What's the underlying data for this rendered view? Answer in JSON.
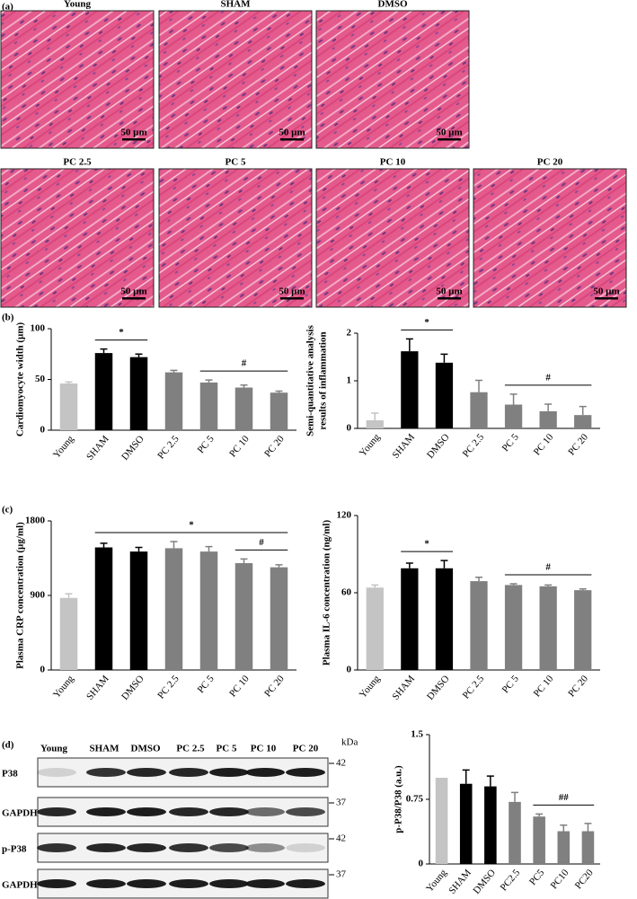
{
  "figure": {
    "panel_labels": [
      "(a)",
      "(b)",
      "(c)",
      "(d)"
    ],
    "histology": {
      "titles": [
        "Young",
        "SHAM",
        "DMSO",
        "PC 2.5",
        "PC 5",
        "PC 10",
        "PC 20"
      ],
      "scale_bar": "50 µm"
    },
    "blot": {
      "lanes": [
        "Young",
        "SHAM",
        "DMSO",
        "PC 2.5",
        "PC 5",
        "PC 10",
        "PC 20"
      ],
      "unit": "kDa",
      "rows": [
        {
          "label": "P38",
          "kda": 42
        },
        {
          "label": "GAPDH",
          "kda": 37
        },
        {
          "label": "p-P38",
          "kda": 42
        },
        {
          "label": "GAPDH",
          "kda": 37
        }
      ]
    }
  },
  "chart_data": [
    {
      "type": "bar",
      "ylabel": [
        "Cardiomyocyte width (µm)"
      ],
      "categories": [
        "Young",
        "SHAM",
        "DMSO",
        "PC 2.5",
        "PC 5",
        "PC 10",
        "PC 20"
      ],
      "values": [
        46,
        76,
        72,
        57,
        47,
        42,
        37
      ],
      "errors": [
        1.5,
        4,
        3,
        2,
        2.5,
        2.5,
        1.5
      ],
      "colors": [
        "#c4c4c4",
        "#000000",
        "#000000",
        "#808080",
        "#808080",
        "#808080",
        "#808080"
      ],
      "ylim": [
        0,
        100
      ],
      "yticks": [
        0,
        50,
        100
      ],
      "annotations": [
        {
          "text": "*",
          "from": "SHAM",
          "to": "DMSO"
        },
        {
          "text": "#",
          "from": "PC 5",
          "to": "PC 20"
        }
      ]
    },
    {
      "type": "bar",
      "ylabel": [
        "Semi-quantitative analysis",
        "results of inflammation"
      ],
      "categories": [
        "Young",
        "SHAM",
        "DMSO",
        "PC 2.5",
        "PC 5",
        "PC 10",
        "PC 20"
      ],
      "values": [
        0.17,
        1.62,
        1.38,
        0.76,
        0.5,
        0.36,
        0.28
      ],
      "errors": [
        0.15,
        0.26,
        0.18,
        0.25,
        0.22,
        0.15,
        0.18
      ],
      "colors": [
        "#c4c4c4",
        "#000000",
        "#000000",
        "#808080",
        "#808080",
        "#808080",
        "#808080"
      ],
      "ylim": [
        0,
        2
      ],
      "yticks": [
        0,
        1,
        2
      ],
      "annotations": [
        {
          "text": "*",
          "from": "SHAM",
          "to": "DMSO"
        },
        {
          "text": "#",
          "from": "PC 5",
          "to": "PC 20"
        }
      ]
    },
    {
      "type": "bar",
      "ylabel": [
        "Plasma  CRP concentration (µg/ml)"
      ],
      "categories": [
        "Young",
        "SHAM",
        "DMSO",
        "PC 2.5",
        "PC 5",
        "PC 10",
        "PC 20"
      ],
      "values": [
        870,
        1480,
        1430,
        1470,
        1430,
        1290,
        1240
      ],
      "errors": [
        50,
        50,
        50,
        80,
        60,
        50,
        30
      ],
      "colors": [
        "#c4c4c4",
        "#000000",
        "#000000",
        "#808080",
        "#808080",
        "#808080",
        "#808080"
      ],
      "ylim": [
        0,
        1800
      ],
      "yticks": [
        0,
        900,
        1800
      ],
      "annotations": [
        {
          "text": "*",
          "from": "SHAM",
          "to": "PC 20"
        },
        {
          "text": "#",
          "from": "PC 10",
          "to": "PC 20"
        }
      ]
    },
    {
      "type": "bar",
      "ylabel": [
        "Plasma IL-6 concentration (ng/ml)"
      ],
      "categories": [
        "Young",
        "SHAM",
        "DMSO",
        "PC 2.5",
        "PC 5",
        "PC 10",
        "PC 20"
      ],
      "values": [
        64,
        79,
        79,
        69,
        66,
        65,
        62
      ],
      "errors": [
        2,
        4,
        6,
        3,
        1,
        1,
        1
      ],
      "colors": [
        "#c4c4c4",
        "#000000",
        "#000000",
        "#808080",
        "#808080",
        "#808080",
        "#808080"
      ],
      "ylim": [
        0,
        120
      ],
      "yticks": [
        0,
        60,
        120
      ],
      "annotations": [
        {
          "text": "*",
          "from": "SHAM",
          "to": "DMSO"
        },
        {
          "text": "#",
          "from": "PC 5",
          "to": "PC 20"
        }
      ]
    },
    {
      "type": "bar",
      "ylabel": [
        "p-P38/P38 (a.u.)"
      ],
      "categories": [
        "Young",
        "SHAM",
        "DMSO",
        "PC2.5",
        "PC5",
        "PC10",
        "PC20"
      ],
      "values": [
        1.0,
        0.93,
        0.9,
        0.72,
        0.55,
        0.38,
        0.38
      ],
      "errors": [
        null,
        0.16,
        0.12,
        0.11,
        0.03,
        0.07,
        0.09
      ],
      "colors": [
        "#c4c4c4",
        "#000000",
        "#000000",
        "#808080",
        "#808080",
        "#808080",
        "#808080"
      ],
      "ylim": [
        0,
        1.5
      ],
      "yticks": [
        0,
        0.75,
        1.5
      ],
      "annotations": [
        {
          "text": "##",
          "from": "PC5",
          "to": "PC20"
        }
      ]
    }
  ]
}
